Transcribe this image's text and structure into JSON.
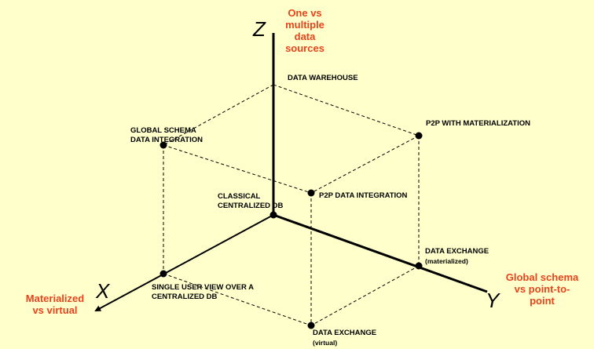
{
  "colors": {
    "background": "#FFFFCC",
    "axis_description": "#E8431C",
    "ink": "#000000"
  },
  "axes": {
    "z": {
      "letter": "Z",
      "description": [
        "One vs",
        "multiple",
        "data",
        "sources"
      ]
    },
    "x": {
      "letter": "X",
      "description": [
        "Materialized",
        "vs virtual"
      ]
    },
    "y": {
      "letter": "Y",
      "description": [
        "Global schema",
        "vs point-to-",
        "point"
      ]
    }
  },
  "nodes": {
    "classical": {
      "lines": [
        "CLASSICAL",
        "CENTRALIZED DB"
      ]
    },
    "data_warehouse": {
      "lines": [
        "DATA WAREHOUSE"
      ]
    },
    "global_schema": {
      "lines": [
        "GLOBAL SCHEMA",
        "DATA INTEGRATION"
      ]
    },
    "p2p_materialization": {
      "lines": [
        "P2P  WITH MATERIALIZATION"
      ]
    },
    "p2p_integration": {
      "lines": [
        "P2P DATA INTEGRATION"
      ]
    },
    "single_user_view": {
      "lines": [
        "SINGLE USER VIEW  OVER A",
        "CENTRALIZED DB"
      ]
    },
    "data_exchange_materialized": {
      "lines": [
        "DATA EXCHANGE",
        "(materialized)"
      ]
    },
    "data_exchange_virtual": {
      "lines": [
        "DATA EXCHANGE",
        "(virtual)"
      ]
    }
  }
}
